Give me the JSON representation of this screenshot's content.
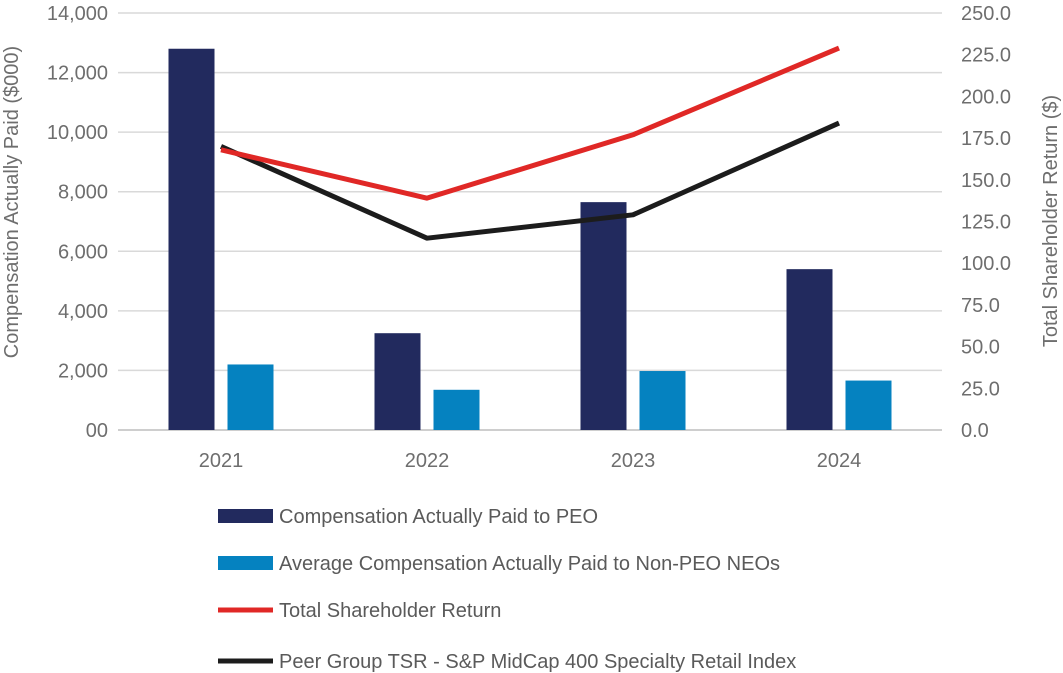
{
  "chart_data": {
    "type": "bar",
    "title": "",
    "categories": [
      "2021",
      "2022",
      "2023",
      "2024"
    ],
    "series": [
      {
        "name": "Compensation Actually Paid to PEO",
        "kind": "bar",
        "axis": "left",
        "color": "#222a5e",
        "values": [
          12800,
          3250,
          7650,
          5400
        ]
      },
      {
        "name": "Average Compensation Actually Paid to Non-PEO NEOs",
        "kind": "bar",
        "axis": "left",
        "color": "#0582c0",
        "values": [
          2200,
          1350,
          1980,
          1660
        ]
      },
      {
        "name": "Total Shareholder Return",
        "kind": "line",
        "axis": "right",
        "color": "#e02826",
        "values": [
          168.0,
          139.0,
          177.0,
          229.0
        ]
      },
      {
        "name": "Peer Group TSR - S&P MidCap 400 Specialty Retail Index",
        "kind": "line",
        "axis": "right",
        "color": "#1c1c1c",
        "values": [
          170.0,
          115.0,
          129.0,
          184.0
        ]
      }
    ],
    "ylabel": "Compensation Actually Paid ($000)",
    "ylim": [
      0,
      14000
    ],
    "yticks": [
      "00",
      "2,000",
      "4,000",
      "6,000",
      "8,000",
      "10,000",
      "12,000",
      "14,000"
    ],
    "y2label": "Total Shareholder Return ($)",
    "y2lim": [
      0,
      250
    ],
    "y2ticks": [
      "0.0",
      "25.0",
      "50.0",
      "75.0",
      "100.0",
      "125.0",
      "150.0",
      "175.0",
      "200.0",
      "225.0",
      "250.0"
    ],
    "xlabel": "",
    "grid": true,
    "legend_position": "bottom"
  }
}
